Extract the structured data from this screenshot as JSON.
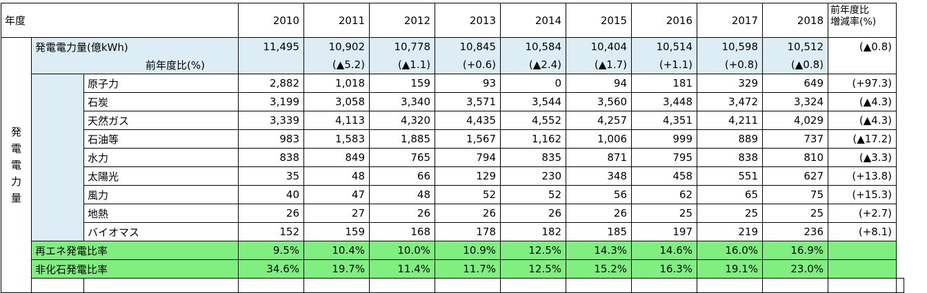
{
  "header": {
    "year_label": "年度",
    "years": [
      "2010",
      "2011",
      "2012",
      "2013",
      "2014",
      "2015",
      "2016",
      "2017",
      "2018"
    ],
    "change_label": "前年度比\n増減率(%)"
  },
  "side_label": [
    "発",
    "電",
    "電",
    "力",
    "量"
  ],
  "total": {
    "label": "発電電力量(億kWh)",
    "values": [
      "11,495",
      "10,902",
      "10,778",
      "10,845",
      "10,584",
      "10,404",
      "10,514",
      "10,598",
      "10,512"
    ],
    "change": "(▲0.8)"
  },
  "yoy": {
    "label": "前年度比(%)",
    "values": [
      "",
      "(▲5.2)",
      "(▲1.1)",
      "(+0.6)",
      "(▲2.4)",
      "(▲1.7)",
      "(+1.1)",
      "(+0.8)",
      "(▲0.8)"
    ]
  },
  "sources": [
    {
      "label": "原子力",
      "values": [
        "2,882",
        "1,018",
        "159",
        "93",
        "0",
        "94",
        "181",
        "329",
        "649"
      ],
      "change": "(+97.3)"
    },
    {
      "label": "石炭",
      "values": [
        "3,199",
        "3,058",
        "3,340",
        "3,571",
        "3,544",
        "3,560",
        "3,448",
        "3,472",
        "3,324"
      ],
      "change": "(▲4.3)"
    },
    {
      "label": "天然ガス",
      "values": [
        "3,339",
        "4,113",
        "4,320",
        "4,435",
        "4,552",
        "4,257",
        "4,351",
        "4,211",
        "4,029"
      ],
      "change": "(▲4.3)"
    },
    {
      "label": "石油等",
      "values": [
        "983",
        "1,583",
        "1,885",
        "1,567",
        "1,162",
        "1,006",
        "999",
        "889",
        "737"
      ],
      "change": "(▲17.2)"
    },
    {
      "label": "水力",
      "values": [
        "838",
        "849",
        "765",
        "794",
        "835",
        "871",
        "795",
        "838",
        "810"
      ],
      "change": "(▲3.3)"
    },
    {
      "label": "太陽光",
      "values": [
        "35",
        "48",
        "66",
        "129",
        "230",
        "348",
        "458",
        "551",
        "627"
      ],
      "change": "(+13.8)"
    },
    {
      "label": "風力",
      "values": [
        "40",
        "47",
        "48",
        "52",
        "52",
        "56",
        "62",
        "65",
        "75"
      ],
      "change": "(+15.3)"
    },
    {
      "label": "地熱",
      "values": [
        "26",
        "27",
        "26",
        "26",
        "26",
        "26",
        "25",
        "25",
        "25"
      ],
      "change": "(+2.7)"
    },
    {
      "label": "バイオマス",
      "values": [
        "152",
        "159",
        "168",
        "178",
        "182",
        "185",
        "197",
        "219",
        "236"
      ],
      "change": "(+8.1)"
    }
  ],
  "ratios": [
    {
      "label": "再エネ発電比率",
      "values": [
        "9.5%",
        "10.4%",
        "10.0%",
        "10.9%",
        "12.5%",
        "14.3%",
        "14.6%",
        "16.0%",
        "16.9%"
      ]
    },
    {
      "label": "非化石発電比率",
      "values": [
        "34.6%",
        "19.7%",
        "11.4%",
        "11.7%",
        "12.5%",
        "15.2%",
        "16.3%",
        "19.1%",
        "23.0%"
      ]
    }
  ],
  "colors": {
    "blue_band": "#dcedf5",
    "green_band": "#7ff07f"
  }
}
